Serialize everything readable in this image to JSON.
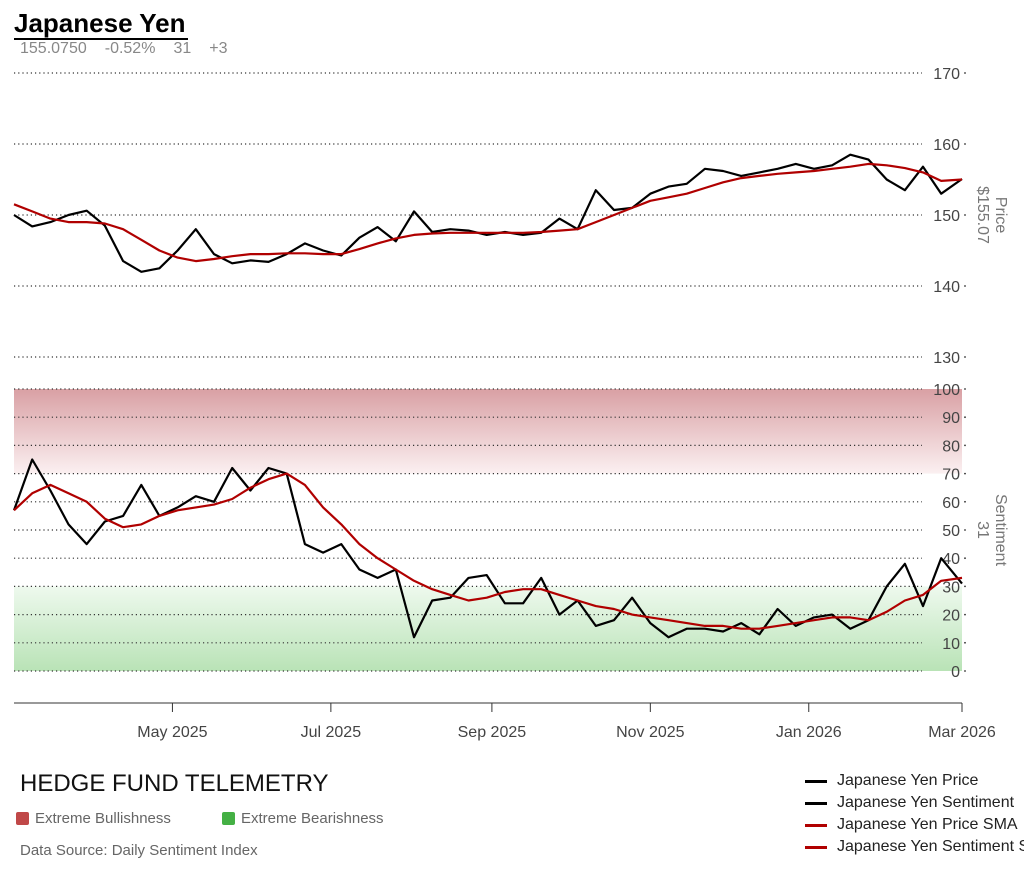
{
  "header": {
    "title": "Japanese Yen",
    "price": "155.0750",
    "change": "-0.52%",
    "sentiment": "31",
    "sentiment_change": "+3"
  },
  "footer": {
    "brand": "HEDGE FUND TELEMETRY",
    "key_bull": "Extreme Bullishness",
    "key_bear": "Extreme Bearishness",
    "source": "Data Source: Daily Sentiment Index"
  },
  "colors": {
    "price": "#000000",
    "sma": "#b00000",
    "bull_zone": "#c04040",
    "bear_zone": "#40b040"
  },
  "chart_data": {
    "type": "line",
    "title": "Japanese Yen",
    "x_range": [
      "2025-03-01",
      "2026-03-01"
    ],
    "x_ticks": [
      {
        "label": "May 2025",
        "date": "2025-05-01"
      },
      {
        "label": "Jul 2025",
        "date": "2025-07-01"
      },
      {
        "label": "Sep 2025",
        "date": "2025-09-01"
      },
      {
        "label": "Nov 2025",
        "date": "2025-11-01"
      },
      {
        "label": "Jan 2026",
        "date": "2026-01-01"
      },
      {
        "label": "Mar 2026",
        "date": "2026-03-01"
      }
    ],
    "start_date": "2025-03-01",
    "interval_days": 7,
    "price_axis": {
      "label": "Price",
      "current": "$155.07",
      "range": [
        130,
        170
      ],
      "ticks": [
        130,
        140,
        150,
        160,
        170
      ]
    },
    "sentiment_axis": {
      "label": "Sentiment",
      "current": "31",
      "range": [
        0,
        100
      ],
      "ticks": [
        0,
        10,
        20,
        30,
        40,
        50,
        60,
        70,
        80,
        90,
        100
      ]
    },
    "zones": {
      "bullish_above": 70,
      "bearish_below": 30
    },
    "series": [
      {
        "name": "Japanese Yen Price",
        "axis": "price",
        "color": "#000000",
        "values": [
          150,
          148.4,
          149,
          150,
          150.6,
          148.5,
          143.5,
          142,
          142.5,
          145,
          148,
          144.5,
          143.2,
          143.6,
          143.4,
          144.5,
          146,
          145,
          144.3,
          146.8,
          148.3,
          146.3,
          150.5,
          147.6,
          148,
          147.8,
          147.2,
          147.6,
          147.2,
          147.5,
          149.5,
          148,
          153.5,
          150.7,
          151,
          153,
          154,
          154.4,
          156.5,
          156.2,
          155.5,
          156,
          156.5,
          157.2,
          156.5,
          157,
          158.5,
          157.8,
          155,
          153.5,
          156.8,
          153,
          155.07
        ]
      },
      {
        "name": "Japanese Yen Sentiment",
        "axis": "sentiment",
        "color": "#000000",
        "values": [
          57,
          75,
          64,
          52,
          45,
          53,
          55,
          66,
          55,
          58,
          62,
          60,
          72,
          64,
          72,
          70,
          45,
          42,
          45,
          36,
          33,
          36,
          12,
          25,
          26,
          33,
          34,
          24,
          24,
          33,
          20,
          25,
          16,
          18,
          26,
          17,
          12,
          15,
          15,
          14,
          17,
          13,
          22,
          16,
          19,
          20,
          15,
          18,
          30,
          38,
          23,
          40,
          31
        ]
      },
      {
        "name": "Japanese Yen Price SMA",
        "axis": "price",
        "color": "#b00000",
        "values": [
          151.5,
          150.5,
          149.5,
          149,
          149,
          148.8,
          148,
          146.5,
          145,
          144,
          143.5,
          143.8,
          144.2,
          144.5,
          144.5,
          144.6,
          144.6,
          144.5,
          144.5,
          145.2,
          146,
          146.7,
          147.2,
          147.4,
          147.5,
          147.5,
          147.5,
          147.5,
          147.5,
          147.6,
          147.8,
          148,
          149,
          150,
          151,
          152,
          152.5,
          153,
          153.8,
          154.6,
          155.2,
          155.5,
          155.8,
          156,
          156.2,
          156.5,
          156.8,
          157.2,
          157,
          156.6,
          156,
          154.8,
          155
        ]
      },
      {
        "name": "Japanese Yen Sentiment SMA",
        "axis": "sentiment",
        "color": "#b00000",
        "values": [
          57,
          63,
          66,
          63,
          60,
          54,
          51,
          52,
          55,
          57,
          58,
          59,
          61,
          65,
          68,
          70,
          66,
          58,
          52,
          45,
          40,
          36,
          32,
          29,
          27,
          25,
          26,
          28,
          29,
          29,
          27,
          25,
          23,
          22,
          20,
          19,
          18,
          17,
          16,
          16,
          15,
          15,
          16,
          17,
          18,
          19,
          19,
          18,
          21,
          25,
          27,
          32,
          33
        ]
      }
    ],
    "legend": [
      "Japanese Yen Price",
      "Japanese Yen Sentiment",
      "Japanese Yen Price SMA",
      "Japanese Yen Sentiment SMA"
    ],
    "legend_position": "bottom-right",
    "grid": true
  }
}
